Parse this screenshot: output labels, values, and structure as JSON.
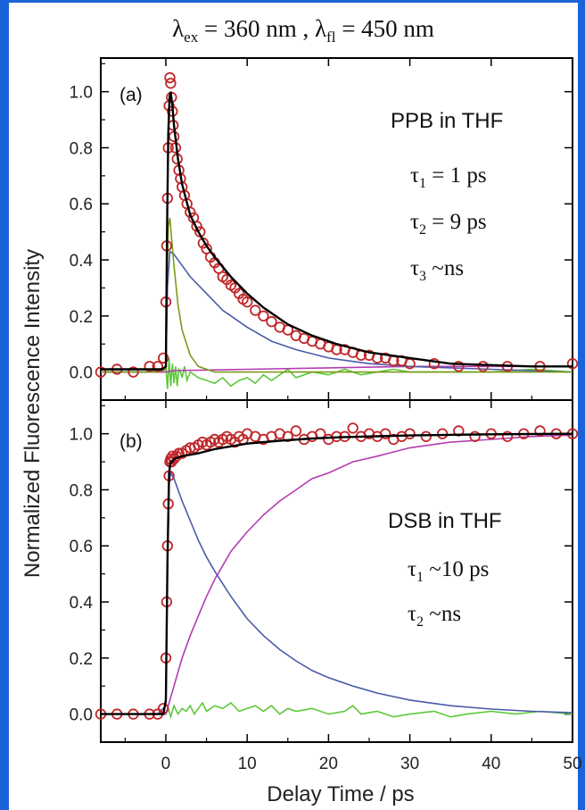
{
  "figure": {
    "header": "λex = 360 nm , λfl = 450 nm",
    "header_parts": {
      "lambda": "λ",
      "ex": "ex",
      "ex_eq": " = 360 nm , ",
      "fl": "fl",
      "fl_eq": " = 450 nm"
    },
    "ylabel": "Normalized Fluorescence Intensity",
    "xlabel": "Delay Time / ps"
  },
  "chart_data": [
    {
      "type": "scatter",
      "panel_label": "(a)",
      "annotation": {
        "title": "PPB in THF",
        "t1": {
          "sym": "τ",
          "sub": "1",
          "text": " = 1 ps"
        },
        "t2": {
          "sym": "τ",
          "sub": "2",
          "text": " = 9 ps"
        },
        "t3": {
          "sym": "τ",
          "sub": "3",
          "text": " ~ns"
        }
      },
      "xlim": [
        -8,
        50
      ],
      "ylim": [
        -0.1,
        1.12
      ],
      "xticks": [
        0,
        10,
        20,
        30,
        40,
        50
      ],
      "yticks": [
        0.0,
        0.2,
        0.4,
        0.6,
        0.8,
        1.0
      ],
      "ytick_labels": [
        "0.0",
        "0.2",
        "0.4",
        "0.6",
        "0.8",
        "1.0"
      ],
      "colors": {
        "data": "#c0282a",
        "fit": "#000000",
        "c1": "#7a9a1c",
        "c2": "#4a5aa8",
        "c3": "#b43cb0",
        "residual": "#5ec83a"
      },
      "series": [
        {
          "kind": "markers",
          "x": [
            -8,
            -6,
            -4,
            -2,
            -1,
            -0.3,
            0.0,
            0.1,
            0.2,
            0.3,
            0.4,
            0.5,
            0.6,
            0.7,
            0.8,
            0.9,
            1.0,
            1.2,
            1.4,
            1.6,
            1.8,
            2.0,
            2.3,
            2.6,
            3.0,
            3.4,
            3.8,
            4.2,
            4.6,
            5.0,
            5.5,
            6.0,
            6.5,
            7.0,
            7.5,
            8.0,
            8.5,
            9.0,
            9.5,
            10,
            11,
            12,
            13,
            14,
            15,
            16,
            17,
            18,
            19,
            20,
            21,
            22,
            23,
            24,
            25,
            26,
            27,
            28,
            29,
            30,
            33,
            36,
            39,
            42,
            46,
            50
          ],
          "y": [
            0.0,
            0.01,
            0.0,
            0.02,
            0.02,
            0.05,
            0.25,
            0.45,
            0.62,
            0.8,
            0.95,
            1.05,
            1.03,
            0.98,
            0.93,
            0.88,
            0.84,
            0.8,
            0.76,
            0.72,
            0.69,
            0.66,
            0.63,
            0.6,
            0.57,
            0.55,
            0.52,
            0.5,
            0.46,
            0.44,
            0.41,
            0.39,
            0.37,
            0.34,
            0.33,
            0.31,
            0.3,
            0.28,
            0.26,
            0.25,
            0.22,
            0.2,
            0.18,
            0.16,
            0.15,
            0.13,
            0.12,
            0.11,
            0.1,
            0.09,
            0.08,
            0.08,
            0.07,
            0.06,
            0.06,
            0.05,
            0.05,
            0.04,
            0.04,
            0.03,
            0.03,
            0.02,
            0.02,
            0.02,
            0.02,
            0.03
          ]
        },
        {
          "kind": "line",
          "role": "fit",
          "x": [
            -8,
            -2,
            -0.5,
            0,
            0.15,
            0.3,
            0.45,
            0.6,
            0.8,
            1.0,
            1.5,
            2.0,
            3.0,
            4.0,
            5.0,
            6.0,
            8.0,
            10,
            12,
            15,
            18,
            21,
            25,
            30,
            35,
            40,
            45,
            50
          ],
          "y": [
            0.01,
            0.01,
            0.01,
            0.02,
            0.5,
            0.85,
            0.98,
            1.0,
            0.95,
            0.88,
            0.76,
            0.67,
            0.56,
            0.5,
            0.45,
            0.41,
            0.34,
            0.28,
            0.23,
            0.17,
            0.13,
            0.1,
            0.07,
            0.05,
            0.03,
            0.025,
            0.02,
            0.02
          ]
        },
        {
          "kind": "line",
          "role": "component-1",
          "x": [
            -8,
            -1,
            0,
            0.15,
            0.3,
            0.5,
            0.7,
            1.0,
            1.5,
            2.0,
            3.0,
            4.0,
            6.0,
            10,
            20,
            50
          ],
          "y": [
            0.0,
            0.0,
            0.01,
            0.3,
            0.52,
            0.55,
            0.48,
            0.38,
            0.24,
            0.15,
            0.06,
            0.02,
            0.0,
            0.0,
            0.0,
            0.0
          ]
        },
        {
          "kind": "line",
          "role": "component-2",
          "x": [
            -8,
            -1,
            0,
            0.2,
            0.5,
            1.0,
            2.0,
            3.0,
            5.0,
            7.0,
            10,
            13,
            16,
            20,
            25,
            30,
            40,
            50
          ],
          "y": [
            0.0,
            0.0,
            0.01,
            0.3,
            0.43,
            0.42,
            0.38,
            0.34,
            0.28,
            0.22,
            0.16,
            0.11,
            0.08,
            0.05,
            0.03,
            0.02,
            0.01,
            0.0
          ]
        },
        {
          "kind": "line",
          "role": "component-3",
          "x": [
            -8,
            0,
            1,
            10,
            20,
            30,
            40,
            50
          ],
          "y": [
            0.0,
            0.0,
            0.005,
            0.01,
            0.015,
            0.02,
            0.02,
            0.02
          ]
        },
        {
          "kind": "line",
          "role": "residual",
          "x": [
            -8,
            -4,
            -2,
            -1,
            -0.5,
            0,
            0.2,
            0.4,
            0.6,
            0.8,
            1.0,
            1.2,
            1.4,
            1.6,
            1.8,
            2.0,
            2.3,
            2.6,
            3.0,
            3.5,
            4.0,
            5,
            6,
            7,
            8,
            9,
            10,
            11,
            12,
            13,
            14,
            15,
            16,
            18,
            20,
            22,
            24,
            26,
            28,
            30,
            35,
            40,
            45,
            50
          ],
          "y": [
            0.0,
            0.0,
            0.0,
            0.01,
            0.0,
            0.02,
            -0.06,
            0.05,
            -0.05,
            0.03,
            -0.04,
            0.02,
            -0.05,
            0.01,
            0.0,
            -0.02,
            0.02,
            -0.03,
            0.0,
            -0.01,
            -0.02,
            -0.03,
            -0.04,
            -0.02,
            -0.05,
            -0.03,
            -0.02,
            -0.04,
            -0.01,
            -0.03,
            -0.01,
            0.01,
            -0.02,
            0.0,
            -0.01,
            0.01,
            -0.01,
            0.0,
            0.01,
            0.0,
            0.0,
            0.0,
            0.01,
            0.0
          ]
        }
      ]
    },
    {
      "type": "scatter",
      "panel_label": "(b)",
      "annotation": {
        "title": "DSB in THF",
        "t1": {
          "sym": "τ",
          "sub": "1",
          "text": " ~10 ps"
        },
        "t2": {
          "sym": "τ",
          "sub": "2",
          "text": " ~ns"
        }
      },
      "xlim": [
        -8,
        50
      ],
      "ylim": [
        -0.1,
        1.12
      ],
      "xticks": [
        0,
        10,
        20,
        30,
        40,
        50
      ],
      "xtick_labels": [
        "0",
        "10",
        "20",
        "30",
        "40",
        "50"
      ],
      "yticks": [
        0.0,
        0.2,
        0.4,
        0.6,
        0.8,
        1.0
      ],
      "ytick_labels": [
        "0.0",
        "0.2",
        "0.4",
        "0.6",
        "0.8",
        "1.0"
      ],
      "colors": {
        "data": "#c0282a",
        "fit": "#000000",
        "c1": "#4a5aa8",
        "c2": "#b43cb0",
        "residual": "#5ec83a"
      },
      "series": [
        {
          "kind": "markers",
          "x": [
            -8,
            -6,
            -4,
            -2,
            -1,
            -0.3,
            0.0,
            0.1,
            0.2,
            0.3,
            0.4,
            0.5,
            0.6,
            0.7,
            0.8,
            1.0,
            1.3,
            1.6,
            2.0,
            2.5,
            3.0,
            3.5,
            4.0,
            4.5,
            5.0,
            5.5,
            6.0,
            6.5,
            7.0,
            7.5,
            8.0,
            8.5,
            9.0,
            9.5,
            10,
            11,
            12,
            13,
            14,
            15,
            16,
            17,
            18,
            19,
            20,
            21,
            22,
            23,
            24,
            25,
            26,
            27,
            28,
            29,
            30,
            32,
            34,
            36,
            38,
            40,
            42,
            44,
            46,
            48,
            50
          ],
          "y": [
            0.0,
            0.0,
            0.0,
            0.0,
            0.0,
            0.02,
            0.2,
            0.4,
            0.6,
            0.75,
            0.85,
            0.9,
            0.91,
            0.9,
            0.92,
            0.91,
            0.92,
            0.93,
            0.93,
            0.94,
            0.95,
            0.95,
            0.96,
            0.97,
            0.96,
            0.97,
            0.98,
            0.97,
            0.98,
            0.99,
            0.98,
            0.97,
            0.99,
            0.98,
            1.0,
            0.99,
            0.98,
            0.99,
            1.0,
            0.99,
            1.01,
            0.98,
            0.99,
            1.0,
            0.98,
            0.99,
            0.99,
            1.02,
            0.99,
            1.0,
            0.99,
            1.0,
            0.98,
            0.99,
            1.0,
            0.99,
            1.0,
            1.01,
            0.99,
            1.0,
            0.99,
            1.0,
            1.01,
            1.0,
            1.0
          ]
        },
        {
          "kind": "line",
          "role": "fit",
          "x": [
            -8,
            -1,
            -0.3,
            0,
            0.2,
            0.4,
            0.6,
            0.8,
            1.0,
            2,
            4,
            6,
            8,
            10,
            14,
            18,
            22,
            26,
            30,
            35,
            40,
            45,
            50
          ],
          "y": [
            0.0,
            0.0,
            0.0,
            0.05,
            0.55,
            0.86,
            0.9,
            0.9,
            0.91,
            0.92,
            0.93,
            0.945,
            0.955,
            0.965,
            0.975,
            0.983,
            0.988,
            0.991,
            0.994,
            0.996,
            0.998,
            0.999,
            1.0
          ]
        },
        {
          "kind": "line",
          "role": "component-1",
          "x": [
            -8,
            -1,
            0,
            0.2,
            0.4,
            0.6,
            1,
            2,
            3,
            4,
            5,
            6,
            8,
            10,
            12,
            14,
            16,
            18,
            20,
            23,
            26,
            30,
            35,
            40,
            45,
            50
          ],
          "y": [
            0.0,
            0.0,
            0.03,
            0.5,
            0.82,
            0.86,
            0.84,
            0.76,
            0.69,
            0.62,
            0.56,
            0.51,
            0.42,
            0.34,
            0.28,
            0.23,
            0.19,
            0.155,
            0.13,
            0.1,
            0.075,
            0.05,
            0.03,
            0.018,
            0.01,
            0.005
          ]
        },
        {
          "kind": "line",
          "role": "component-2",
          "x": [
            -8,
            -1,
            0,
            0.5,
            1,
            2,
            3,
            4,
            5,
            6,
            8,
            10,
            12,
            14,
            16,
            18,
            20,
            23,
            26,
            30,
            35,
            40,
            45,
            50
          ],
          "y": [
            0.0,
            0.0,
            0.0,
            0.05,
            0.1,
            0.2,
            0.28,
            0.35,
            0.42,
            0.48,
            0.58,
            0.65,
            0.71,
            0.76,
            0.8,
            0.84,
            0.86,
            0.9,
            0.92,
            0.95,
            0.97,
            0.98,
            0.99,
            0.995
          ]
        },
        {
          "kind": "line",
          "role": "residual",
          "x": [
            -8,
            -2,
            -0.5,
            0,
            0.3,
            0.6,
            1.0,
            1.5,
            2,
            2.5,
            3,
            3.5,
            4,
            4.5,
            5,
            6,
            7,
            8,
            9,
            10,
            11,
            12,
            13,
            14,
            15,
            16,
            18,
            20,
            22,
            23,
            24,
            26,
            28,
            30,
            33,
            35,
            37,
            40,
            43,
            46,
            50
          ],
          "y": [
            0.0,
            0.0,
            0.0,
            0.0,
            0.02,
            -0.01,
            0.03,
            0.0,
            0.02,
            0.01,
            0.03,
            0.0,
            0.02,
            0.04,
            0.01,
            0.03,
            0.02,
            0.04,
            0.01,
            0.02,
            0.03,
            0.01,
            0.03,
            0.0,
            0.02,
            0.01,
            0.02,
            0.0,
            0.01,
            0.03,
            0.0,
            0.01,
            -0.01,
            0.0,
            0.01,
            -0.01,
            0.0,
            0.01,
            0.0,
            0.01,
            0.0
          ]
        }
      ]
    }
  ]
}
